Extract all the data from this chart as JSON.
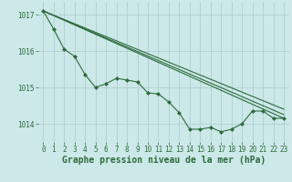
{
  "background_color": "#cce8e8",
  "grid_color": "#aacccc",
  "line_color": "#2d6b3c",
  "marker_color": "#2d6b3c",
  "xlabel": "Graphe pression niveau de la mer (hPa)",
  "xlabel_fontsize": 7,
  "tick_fontsize": 5.5,
  "yticks": [
    1014,
    1015,
    1016,
    1017
  ],
  "xticks": [
    0,
    1,
    2,
    3,
    4,
    5,
    6,
    7,
    8,
    9,
    10,
    11,
    12,
    13,
    14,
    15,
    16,
    17,
    18,
    19,
    20,
    21,
    22,
    23
  ],
  "xlim": [
    -0.5,
    23.5
  ],
  "ylim": [
    1013.5,
    1017.35
  ],
  "main_y": [
    1017.1,
    1016.6,
    1016.05,
    1015.85,
    1015.35,
    1015.0,
    1015.1,
    1015.25,
    1015.2,
    1015.15,
    1014.85,
    1014.82,
    1014.6,
    1014.3,
    1013.85,
    1013.85,
    1013.9,
    1013.78,
    1013.85,
    1014.0,
    1014.35,
    1014.35,
    1014.15,
    1014.15
  ],
  "main_x": [
    0,
    1,
    2,
    3,
    4,
    5,
    6,
    7,
    8,
    9,
    10,
    11,
    12,
    13,
    14,
    15,
    16,
    17,
    18,
    19,
    20,
    21,
    22,
    23
  ],
  "trend_lines": [
    {
      "x": [
        0,
        23
      ],
      "y": [
        1017.1,
        1014.15
      ]
    },
    {
      "x": [
        0,
        23
      ],
      "y": [
        1017.1,
        1014.25
      ]
    },
    {
      "x": [
        0,
        23
      ],
      "y": [
        1017.1,
        1014.4
      ]
    }
  ]
}
